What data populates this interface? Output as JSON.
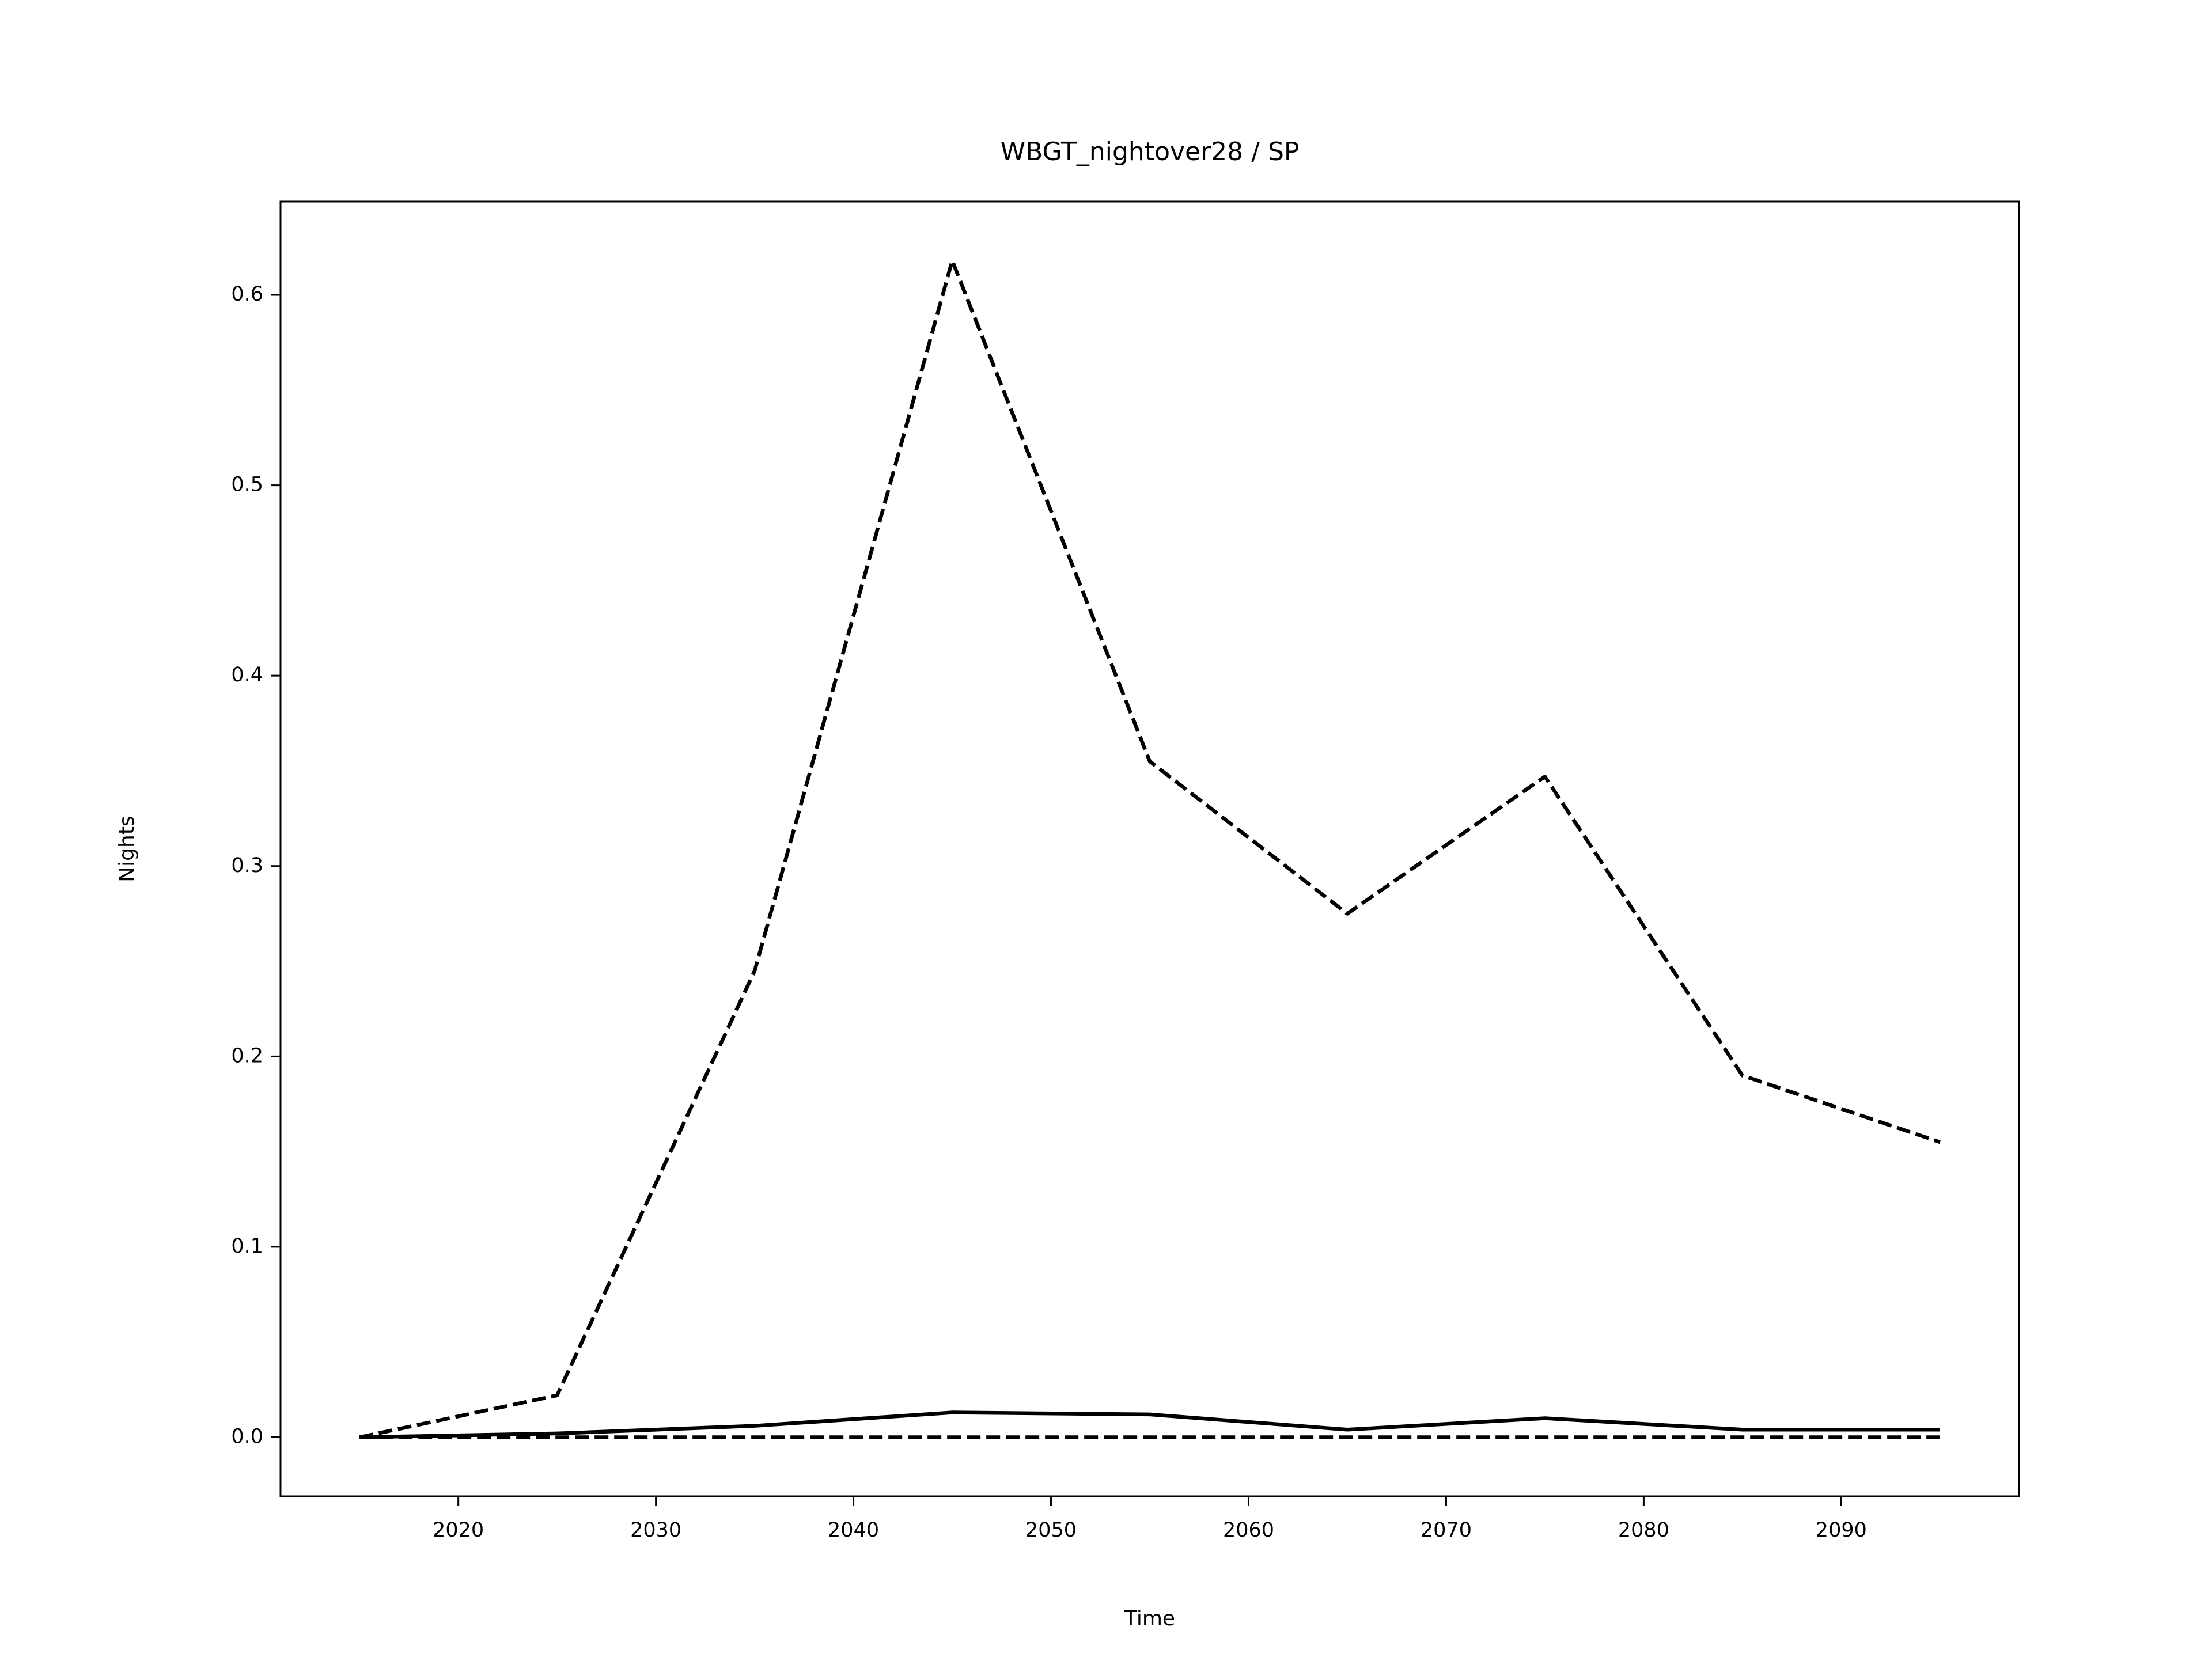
{
  "chart_data": {
    "type": "line",
    "title": "WBGT_nightover28 / SP",
    "x_label": "Time",
    "y_label": "Nights",
    "x": [
      2015,
      2025,
      2035,
      2045,
      2055,
      2065,
      2075,
      2085,
      2095
    ],
    "series": [
      {
        "color": "#000000",
        "linestyle": "dashed",
        "values": [
          0,
          0.022,
          0.245,
          0.618,
          0.355,
          0.275,
          0.347,
          0.19,
          0.155
        ]
      },
      {
        "color": "#000000",
        "linestyle": "solid",
        "values": [
          0,
          0.002,
          0.006,
          0.013,
          0.012,
          0.004,
          0.01,
          0.004,
          0.004
        ]
      },
      {
        "color": "#000000",
        "linestyle": "dashed",
        "values": [
          0,
          0,
          0,
          0,
          0,
          0,
          0,
          0,
          0
        ]
      }
    ],
    "xlim": [
      2011,
      2099
    ],
    "xticks": [
      2020,
      2030,
      2040,
      2050,
      2060,
      2070,
      2080,
      2090
    ],
    "ylim": [
      -0.031,
      0.649
    ],
    "yticks": [
      {
        "value": 0,
        "label": "0.0"
      },
      0.1,
      0.2,
      0.3,
      0.4,
      0.5,
      0.6
    ],
    "grid": false
  }
}
